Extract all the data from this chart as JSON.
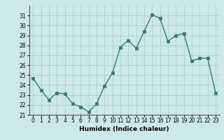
{
  "x": [
    0,
    1,
    2,
    3,
    4,
    5,
    6,
    7,
    8,
    9,
    10,
    11,
    12,
    13,
    14,
    15,
    16,
    17,
    18,
    19,
    20,
    21,
    22,
    23
  ],
  "y": [
    24.7,
    23.5,
    22.5,
    23.2,
    23.1,
    22.1,
    21.8,
    21.3,
    22.1,
    23.9,
    25.2,
    27.8,
    28.5,
    27.7,
    29.4,
    31.1,
    30.7,
    28.4,
    29.0,
    29.2,
    26.4,
    26.7,
    26.7,
    23.2
  ],
  "line_color": "#2e7d6e",
  "marker": "s",
  "markersize": 2.5,
  "linewidth": 1.0,
  "bg_color": "#cce8e8",
  "grid_color": "#aac8c8",
  "xlabel": "Humidex (Indice chaleur)",
  "ylim": [
    21,
    32
  ],
  "xlim": [
    -0.5,
    23.5
  ],
  "yticks": [
    21,
    22,
    23,
    24,
    25,
    26,
    27,
    28,
    29,
    30,
    31
  ],
  "xticks": [
    0,
    1,
    2,
    3,
    4,
    5,
    6,
    7,
    8,
    9,
    10,
    11,
    12,
    13,
    14,
    15,
    16,
    17,
    18,
    19,
    20,
    21,
    22,
    23
  ],
  "label_fontsize": 6.5,
  "tick_fontsize": 5.5
}
